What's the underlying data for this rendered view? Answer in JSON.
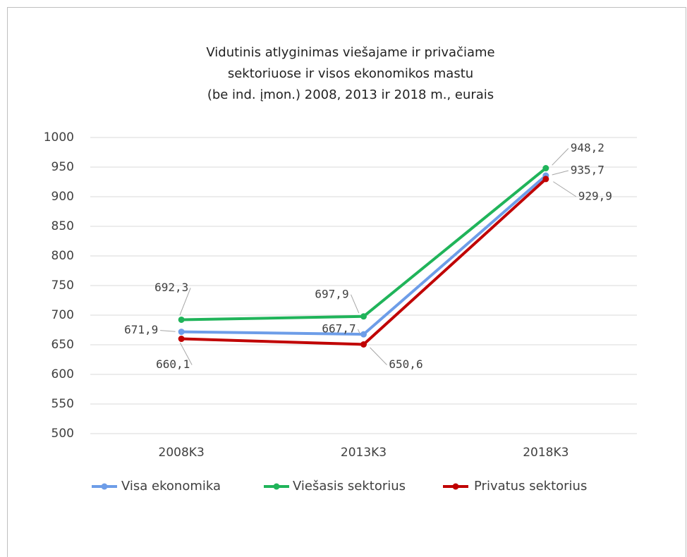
{
  "chart_data": {
    "type": "line",
    "title": [
      "Vidutinis atlyginimas viešajame ir privačiame",
      "sektoriuose ir visos ekonomikos mastu",
      "(be ind. įmon.) 2008, 2013 ir 2018 m., eurais"
    ],
    "categories": [
      "2008K3",
      "2013K3",
      "2018K3"
    ],
    "series": [
      {
        "name": "Visa ekonomika",
        "color": "#6d9de8",
        "values": [
          671.9,
          667.7,
          935.7
        ],
        "value_labels": [
          "671,9",
          "667,7",
          "935,7"
        ]
      },
      {
        "name": "Viešasis sektorius",
        "color": "#20b45a",
        "values": [
          692.3,
          697.9,
          948.2
        ],
        "value_labels": [
          "692,3",
          "697,9",
          "948,2"
        ]
      },
      {
        "name": "Privatus sektorius",
        "color": "#c00000",
        "values": [
          660.1,
          650.6,
          929.9
        ],
        "value_labels": [
          "660,1",
          "650,6",
          "929,9"
        ]
      }
    ],
    "ylim": [
      500,
      1000
    ],
    "yticks": [
      500,
      550,
      600,
      650,
      700,
      750,
      800,
      850,
      900,
      950,
      1000
    ],
    "grid": true,
    "legend": "bottom"
  }
}
